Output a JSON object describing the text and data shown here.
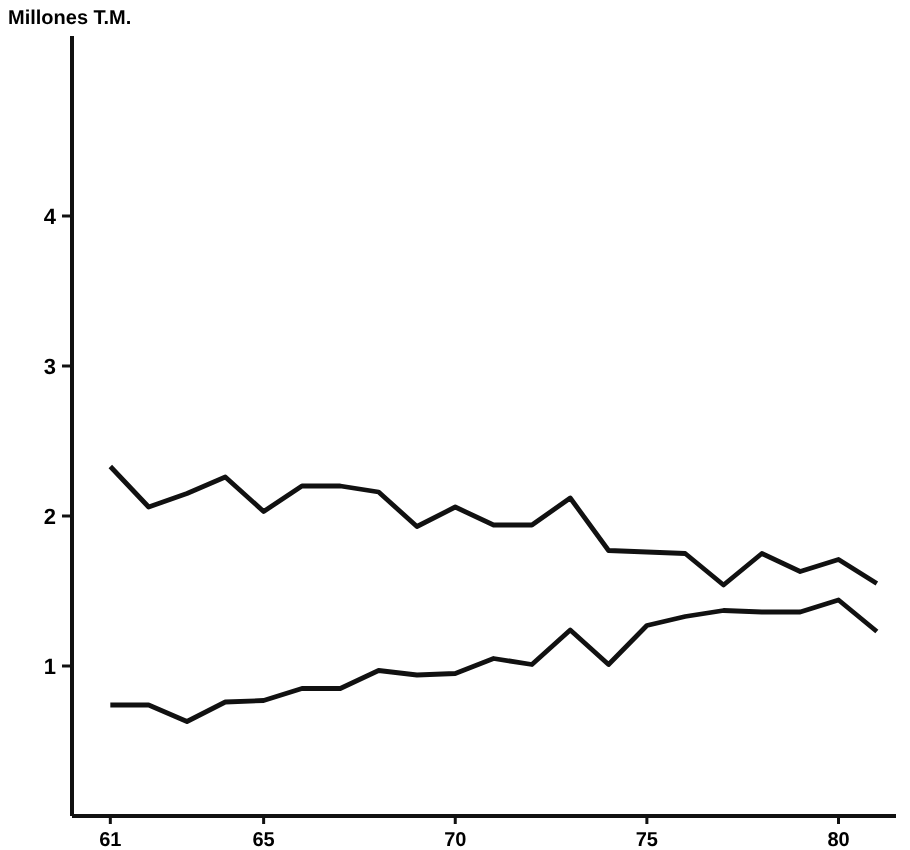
{
  "chart_data": {
    "type": "line",
    "ylabel": "Millones T.M.",
    "x": [
      61,
      62,
      63,
      64,
      65,
      66,
      67,
      68,
      69,
      70,
      71,
      72,
      73,
      74,
      75,
      76,
      77,
      78,
      79,
      80,
      81
    ],
    "series": [
      {
        "color": "#111111",
        "values": [
          2.33,
          2.06,
          2.15,
          2.26,
          2.03,
          2.2,
          2.2,
          2.16,
          1.93,
          2.06,
          1.94,
          1.94,
          2.12,
          1.77,
          1.76,
          1.75,
          1.54,
          1.75,
          1.63,
          1.71,
          1.55
        ]
      },
      {
        "color": "#111111",
        "values": [
          0.74,
          0.74,
          0.63,
          0.76,
          0.77,
          0.85,
          0.85,
          0.97,
          0.94,
          0.95,
          1.05,
          1.01,
          1.24,
          1.01,
          1.27,
          1.33,
          1.37,
          1.36,
          1.36,
          1.44,
          1.23
        ]
      }
    ],
    "xlim": [
      60,
      81.5
    ],
    "ylim": [
      0,
      5.2
    ],
    "xticks": [
      61,
      65,
      70,
      75,
      80
    ],
    "yticks": [
      1,
      2,
      3,
      4
    ],
    "grid": false,
    "marker": "none",
    "line_style": "solid"
  }
}
